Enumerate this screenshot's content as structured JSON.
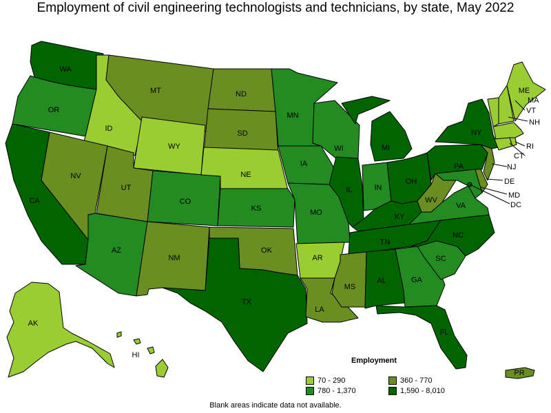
{
  "title": "Employment of civil engineering technologists and technicians, by state, May 2022",
  "legend": {
    "title": "Employment",
    "items": [
      {
        "label": "70 - 290",
        "color": "#9acd32"
      },
      {
        "label": "360 - 770",
        "color": "#6b8e23"
      },
      {
        "label": "780 - 1,370",
        "color": "#228b22"
      },
      {
        "label": "1,590 - 8,010",
        "color": "#006400"
      }
    ]
  },
  "footnote": "Blank areas indicate data not available.",
  "states": {
    "WA": {
      "label": "WA",
      "bin": 3
    },
    "OR": {
      "label": "OR",
      "bin": 2
    },
    "CA": {
      "label": "CA",
      "bin": 3
    },
    "ID": {
      "label": "ID",
      "bin": 0
    },
    "NV": {
      "label": "NV",
      "bin": 1
    },
    "MT": {
      "label": "MT",
      "bin": 1
    },
    "WY": {
      "label": "WY",
      "bin": 0
    },
    "UT": {
      "label": "UT",
      "bin": 1
    },
    "AZ": {
      "label": "AZ",
      "bin": 2
    },
    "CO": {
      "label": "CO",
      "bin": 2
    },
    "NM": {
      "label": "NM",
      "bin": 1
    },
    "ND": {
      "label": "ND",
      "bin": 1
    },
    "SD": {
      "label": "SD",
      "bin": 1
    },
    "NE": {
      "label": "NE",
      "bin": 0
    },
    "KS": {
      "label": "KS",
      "bin": 2
    },
    "OK": {
      "label": "OK",
      "bin": 1
    },
    "TX": {
      "label": "TX",
      "bin": 3
    },
    "MN": {
      "label": "MN",
      "bin": 2
    },
    "IA": {
      "label": "IA",
      "bin": 2
    },
    "MO": {
      "label": "MO",
      "bin": 2
    },
    "AR": {
      "label": "AR",
      "bin": 0
    },
    "LA": {
      "label": "LA",
      "bin": 1
    },
    "WI": {
      "label": "WI",
      "bin": 2
    },
    "IL": {
      "label": "IL",
      "bin": 3
    },
    "MI": {
      "label": "MI",
      "bin": 3
    },
    "IN": {
      "label": "IN",
      "bin": 2
    },
    "OH": {
      "label": "OH",
      "bin": 3
    },
    "KY": {
      "label": "KY",
      "bin": 3
    },
    "TN": {
      "label": "TN",
      "bin": 3
    },
    "MS": {
      "label": "MS",
      "bin": 1
    },
    "AL": {
      "label": "AL",
      "bin": 3
    },
    "GA": {
      "label": "GA",
      "bin": 2
    },
    "FL": {
      "label": "FL",
      "bin": 3
    },
    "SC": {
      "label": "SC",
      "bin": 2
    },
    "NC": {
      "label": "NC",
      "bin": 3
    },
    "VA": {
      "label": "VA",
      "bin": 2
    },
    "WV": {
      "label": "WV",
      "bin": 1
    },
    "PA": {
      "label": "PA",
      "bin": 3
    },
    "NY": {
      "label": "NY",
      "bin": 3
    },
    "ME": {
      "label": "ME",
      "bin": 0
    },
    "VT": {
      "label": "VT",
      "bin": 0
    },
    "NH": {
      "label": "NH",
      "bin": 0
    },
    "MA": {
      "label": "MA",
      "bin": 0
    },
    "CT": {
      "label": "CT",
      "bin": 0
    },
    "RI": {
      "label": "RI",
      "bin": 0
    },
    "NJ": {
      "label": "NJ",
      "bin": 1
    },
    "DE": {
      "label": "DE",
      "bin": 1
    },
    "MD": {
      "label": "MD",
      "bin": 2
    },
    "DC": {
      "label": "DC",
      "bin": 3
    },
    "AK": {
      "label": "AK",
      "bin": 0
    },
    "HI": {
      "label": "HI",
      "bin": 0
    },
    "PR": {
      "label": "PR",
      "bin": 1
    }
  }
}
